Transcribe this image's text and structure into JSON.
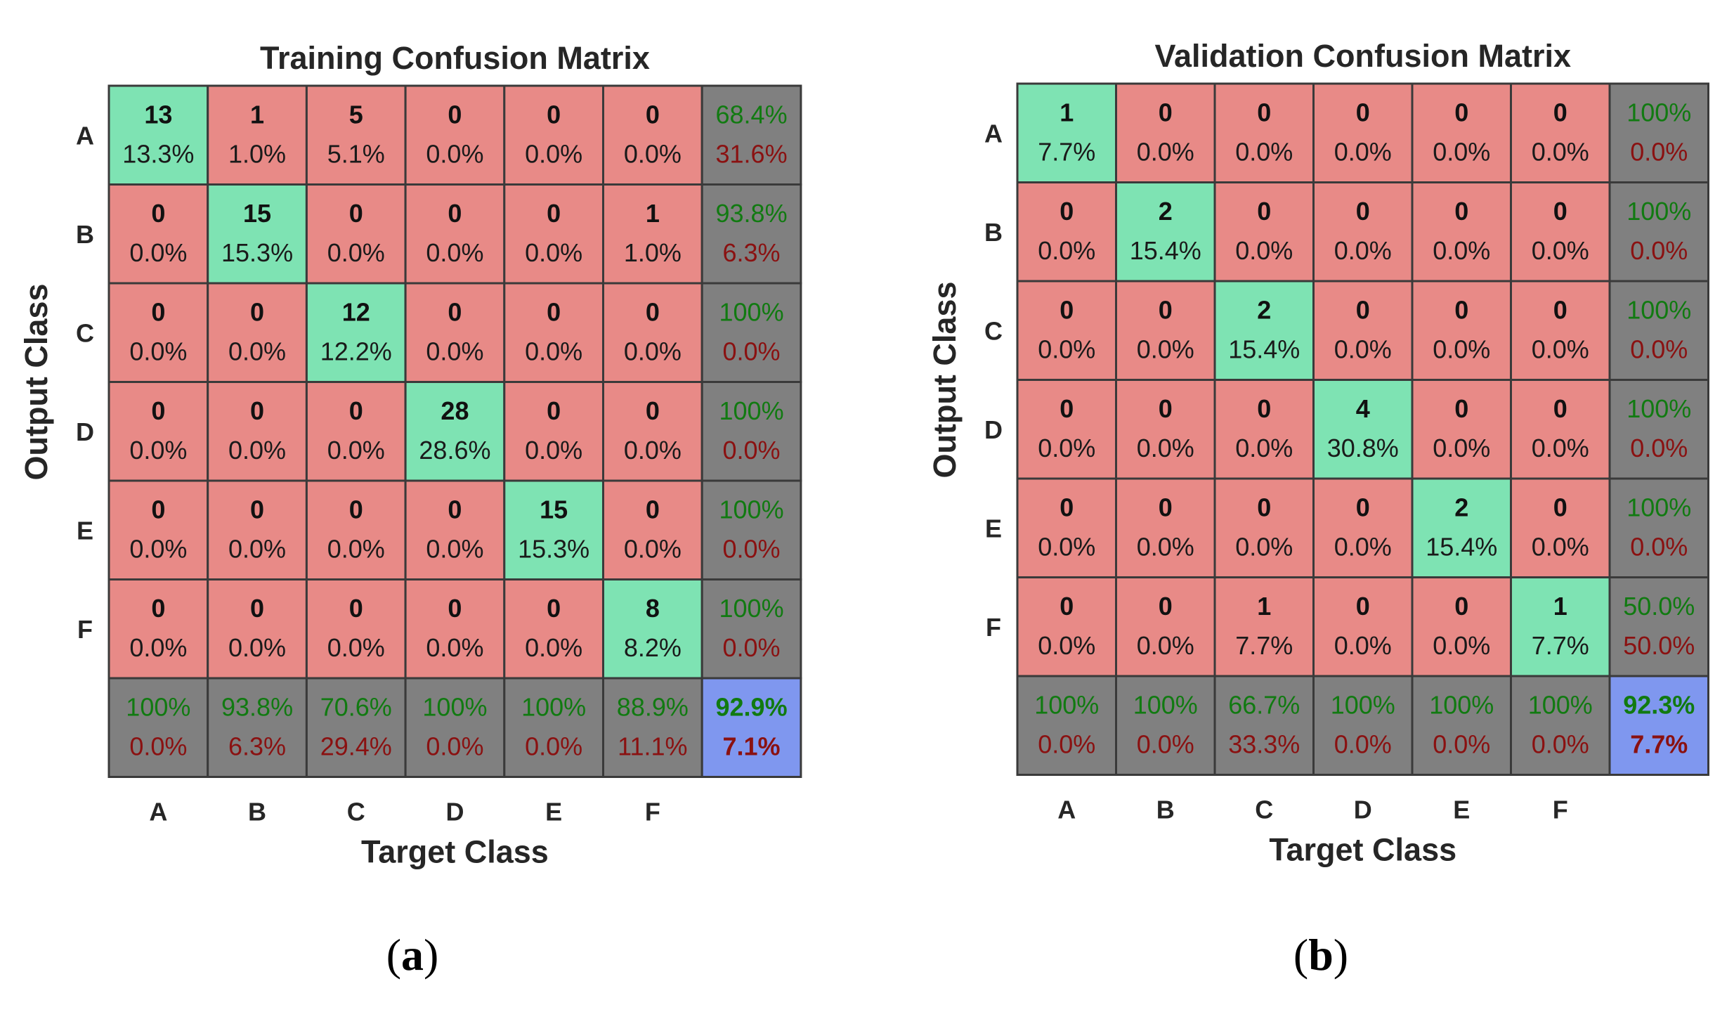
{
  "colors": {
    "correct": "#7ee3b3",
    "incorrect": "#e88a87",
    "summary": "#808080",
    "overall": "#7f97ef",
    "good_text": "#117a11",
    "bad_text": "#8a1111",
    "grid": "#3a3a3a"
  },
  "chart_data": [
    {
      "type": "heatmap",
      "id": "a",
      "title": "Training Confusion Matrix",
      "xlabel": "Target Class",
      "ylabel": "Output Class",
      "caption_open": "(",
      "caption_letter": "a",
      "caption_close": ")",
      "classes": [
        "A",
        "B",
        "C",
        "D",
        "E",
        "F"
      ],
      "counts": [
        [
          13,
          1,
          5,
          0,
          0,
          0
        ],
        [
          0,
          15,
          0,
          0,
          0,
          1
        ],
        [
          0,
          0,
          12,
          0,
          0,
          0
        ],
        [
          0,
          0,
          0,
          28,
          0,
          0
        ],
        [
          0,
          0,
          0,
          0,
          15,
          0
        ],
        [
          0,
          0,
          0,
          0,
          0,
          8
        ]
      ],
      "percents": [
        [
          "13.3%",
          "1.0%",
          "5.1%",
          "0.0%",
          "0.0%",
          "0.0%"
        ],
        [
          "0.0%",
          "15.3%",
          "0.0%",
          "0.0%",
          "0.0%",
          "1.0%"
        ],
        [
          "0.0%",
          "0.0%",
          "12.2%",
          "0.0%",
          "0.0%",
          "0.0%"
        ],
        [
          "0.0%",
          "0.0%",
          "0.0%",
          "28.6%",
          "0.0%",
          "0.0%"
        ],
        [
          "0.0%",
          "0.0%",
          "0.0%",
          "0.0%",
          "15.3%",
          "0.0%"
        ],
        [
          "0.0%",
          "0.0%",
          "0.0%",
          "0.0%",
          "0.0%",
          "8.2%"
        ]
      ],
      "row_summary": [
        [
          "68.4%",
          "31.6%"
        ],
        [
          "93.8%",
          "6.3%"
        ],
        [
          "100%",
          "0.0%"
        ],
        [
          "100%",
          "0.0%"
        ],
        [
          "100%",
          "0.0%"
        ],
        [
          "100%",
          "0.0%"
        ]
      ],
      "col_summary": [
        [
          "100%",
          "0.0%"
        ],
        [
          "93.8%",
          "6.3%"
        ],
        [
          "70.6%",
          "29.4%"
        ],
        [
          "100%",
          "0.0%"
        ],
        [
          "100%",
          "0.0%"
        ],
        [
          "88.9%",
          "11.1%"
        ]
      ],
      "overall": [
        "92.9%",
        "7.1%"
      ]
    },
    {
      "type": "heatmap",
      "id": "b",
      "title": "Validation Confusion Matrix",
      "xlabel": "Target Class",
      "ylabel": "Output Class",
      "caption_open": "(",
      "caption_letter": "b",
      "caption_close": ")",
      "classes": [
        "A",
        "B",
        "C",
        "D",
        "E",
        "F"
      ],
      "counts": [
        [
          1,
          0,
          0,
          0,
          0,
          0
        ],
        [
          0,
          2,
          0,
          0,
          0,
          0
        ],
        [
          0,
          0,
          2,
          0,
          0,
          0
        ],
        [
          0,
          0,
          0,
          4,
          0,
          0
        ],
        [
          0,
          0,
          0,
          0,
          2,
          0
        ],
        [
          0,
          0,
          1,
          0,
          0,
          1
        ]
      ],
      "percents": [
        [
          "7.7%",
          "0.0%",
          "0.0%",
          "0.0%",
          "0.0%",
          "0.0%"
        ],
        [
          "0.0%",
          "15.4%",
          "0.0%",
          "0.0%",
          "0.0%",
          "0.0%"
        ],
        [
          "0.0%",
          "0.0%",
          "15.4%",
          "0.0%",
          "0.0%",
          "0.0%"
        ],
        [
          "0.0%",
          "0.0%",
          "0.0%",
          "30.8%",
          "0.0%",
          "0.0%"
        ],
        [
          "0.0%",
          "0.0%",
          "0.0%",
          "0.0%",
          "15.4%",
          "0.0%"
        ],
        [
          "0.0%",
          "0.0%",
          "7.7%",
          "0.0%",
          "0.0%",
          "7.7%"
        ]
      ],
      "row_summary": [
        [
          "100%",
          "0.0%"
        ],
        [
          "100%",
          "0.0%"
        ],
        [
          "100%",
          "0.0%"
        ],
        [
          "100%",
          "0.0%"
        ],
        [
          "100%",
          "0.0%"
        ],
        [
          "50.0%",
          "50.0%"
        ]
      ],
      "col_summary": [
        [
          "100%",
          "0.0%"
        ],
        [
          "100%",
          "0.0%"
        ],
        [
          "66.7%",
          "33.3%"
        ],
        [
          "100%",
          "0.0%"
        ],
        [
          "100%",
          "0.0%"
        ],
        [
          "100%",
          "0.0%"
        ]
      ],
      "overall": [
        "92.3%",
        "7.7%"
      ]
    }
  ]
}
